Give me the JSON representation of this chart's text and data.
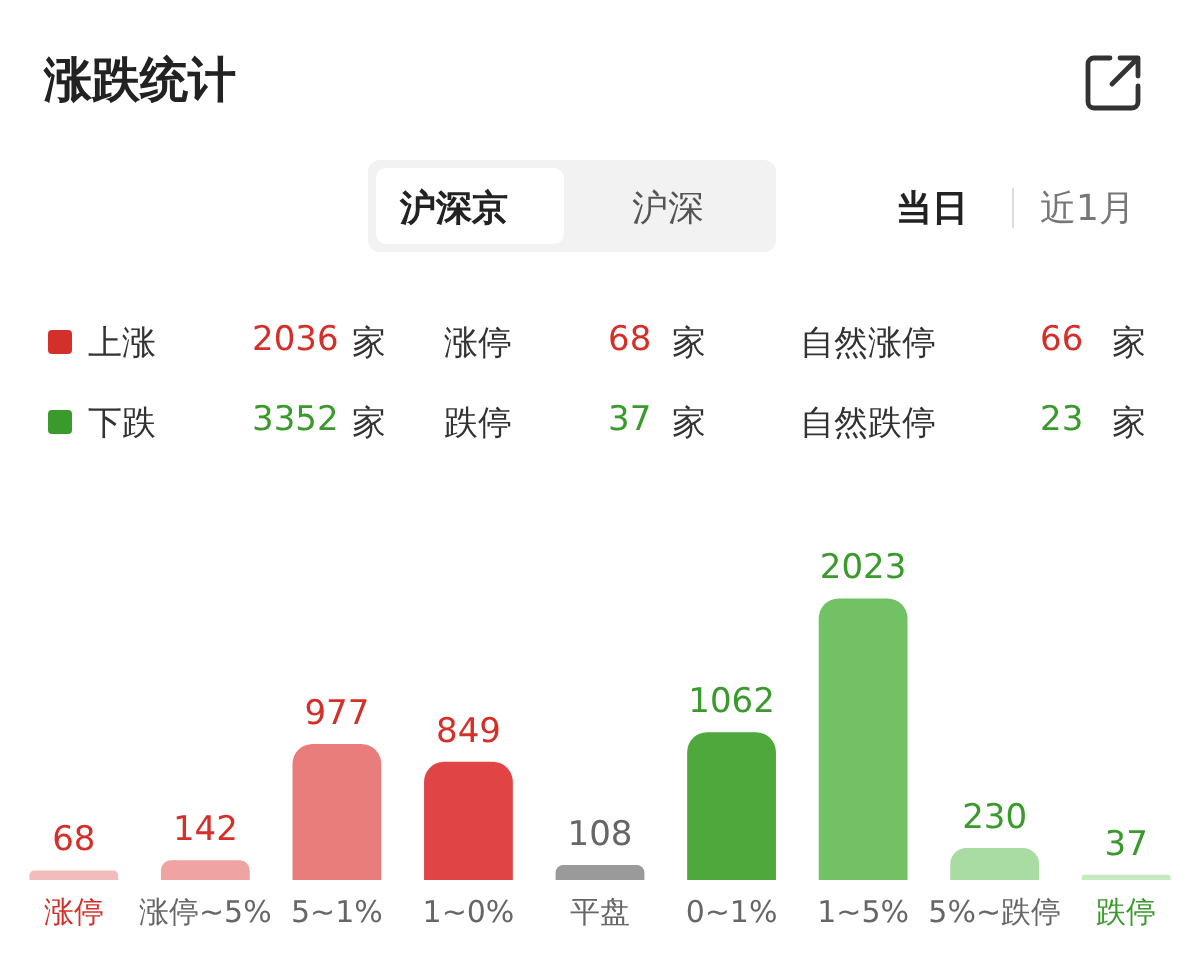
{
  "chart_data": {
    "type": "bar",
    "title": "涨跌统计",
    "annotations": [
      "沪深京",
      "沪深",
      "当日",
      "近1月",
      "上涨",
      "2036",
      "家",
      "涨停",
      "68",
      "家",
      "自然涨停",
      "66",
      "家",
      "下跌",
      "3352",
      "家",
      "跌停",
      "37",
      "家",
      "自然跌停",
      "23",
      "家"
    ],
    "categories": [
      "涨停",
      "涨停~5%",
      "5~1%",
      "1~0%",
      "平盘",
      "0~1%",
      "1~5%",
      "5%~跌停",
      "跌停"
    ],
    "values": [
      68,
      142,
      977,
      849,
      108,
      1062,
      2023,
      230,
      37
    ],
    "colors": [
      "#f3bcbc",
      "#f0a3a3",
      "#e97d7b",
      "#e04444",
      "#9a9a9a",
      "#4ea83c",
      "#72c265",
      "#a9dca2",
      "#c6eabf"
    ],
    "data_labels": true,
    "grid": false,
    "legend": false
  }
}
